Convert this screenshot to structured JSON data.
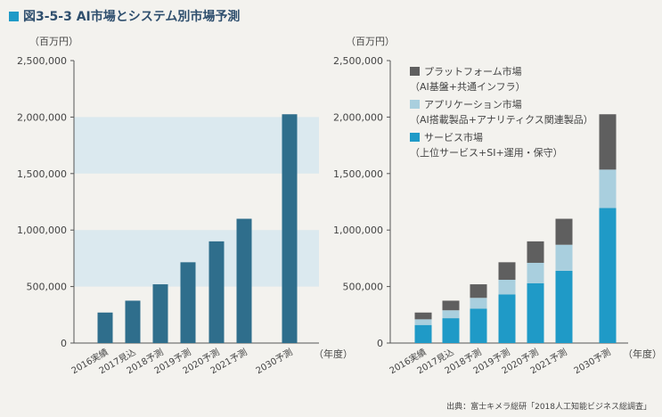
{
  "figure": {
    "title": "図3-5-3 AI市場とシステム別市場予測",
    "source": "出典：富士キメラ総研「2018人工知能ビジネス総調査」"
  },
  "colors": {
    "bar_total": "#2f6e8c",
    "band": "#dbe9ef",
    "platform": "#5f5f5f",
    "application": "#a9cfde",
    "service": "#1f9ac7"
  },
  "chart_data": [
    {
      "type": "bar",
      "unit_label": "（百万円）",
      "xlabel": "（年度）",
      "categories": [
        "2016実績",
        "2017見込",
        "2018予測",
        "2019予測",
        "2020予測",
        "2021予測",
        "2030予測"
      ],
      "values": [
        270000,
        375000,
        520000,
        715000,
        900000,
        1100000,
        2025000
      ],
      "ylim": [
        0,
        2500000
      ],
      "yticks": [
        "2,500,000",
        "2,000,000",
        "1,500,000",
        "1,000,000",
        "500,000",
        "0"
      ],
      "ytick_values": [
        2500000,
        2000000,
        1500000,
        1000000,
        500000,
        0
      ],
      "bands": [
        [
          500000,
          1000000
        ],
        [
          1500000,
          2000000
        ]
      ]
    },
    {
      "type": "bar",
      "stacked": true,
      "unit_label": "（百万円）",
      "xlabel": "（年度）",
      "categories": [
        "2016実績",
        "2017見込",
        "2018予測",
        "2019予測",
        "2020予測",
        "2021予測",
        "2030予測"
      ],
      "ylim": [
        0,
        2500000
      ],
      "yticks": [
        "2,500,000",
        "2,000,000",
        "1,500,000",
        "1,000,000",
        "500,000",
        "0"
      ],
      "ytick_values": [
        2500000,
        2000000,
        1500000,
        1000000,
        500000,
        0
      ],
      "legend_position": "top-left",
      "series": [
        {
          "name": "サービス市場",
          "sub": "（上位サービス+SI+運用・保守）",
          "color_key": "service",
          "values": [
            160000,
            220000,
            305000,
            430000,
            530000,
            640000,
            1195000
          ]
        },
        {
          "name": "アプリケーション市場",
          "sub": "（AI搭載製品+アナリティクス関連製品）",
          "color_key": "application",
          "values": [
            50000,
            70000,
            95000,
            130000,
            180000,
            230000,
            340000
          ]
        },
        {
          "name": "プラットフォーム市場",
          "sub": "（AI基盤+共通インフラ）",
          "color_key": "platform",
          "values": [
            60000,
            85000,
            120000,
            155000,
            190000,
            230000,
            490000
          ]
        }
      ]
    }
  ]
}
